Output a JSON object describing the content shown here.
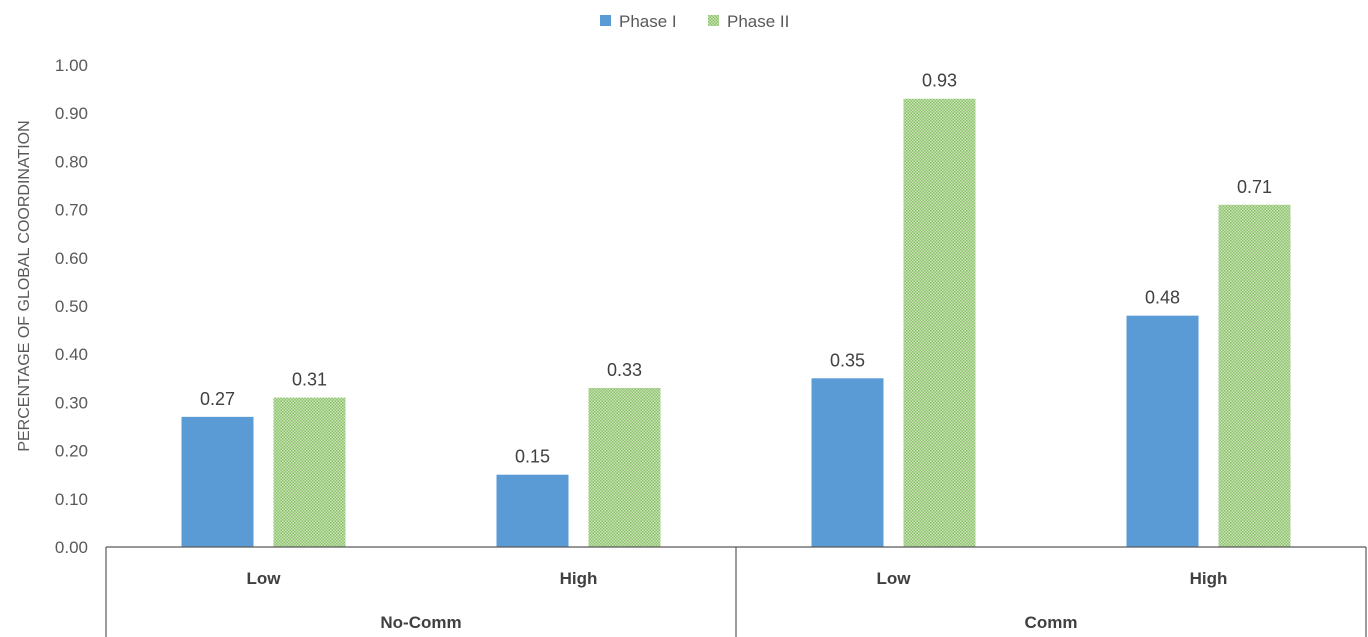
{
  "chart_data": {
    "type": "bar",
    "title": "",
    "ylabel": "PERCENTAGE OF GLOBAL COORDINATION",
    "ylim": [
      0,
      1
    ],
    "ytick_step": 0.1,
    "ytick_labels": [
      "0.00",
      "0.10",
      "0.20",
      "0.30",
      "0.40",
      "0.50",
      "0.60",
      "0.70",
      "0.80",
      "0.90",
      "1.00"
    ],
    "legend_position": "top-center",
    "groups": [
      {
        "label": "No-Comm",
        "categories": [
          "Low",
          "High"
        ]
      },
      {
        "label": "Comm",
        "categories": [
          "Low",
          "High"
        ]
      }
    ],
    "series": [
      {
        "name": "Phase I",
        "color": "#5b9bd5",
        "pattern": "solid",
        "values": [
          0.27,
          0.15,
          0.35,
          0.48
        ],
        "labels": [
          "0.27",
          "0.15",
          "0.35",
          "0.48"
        ]
      },
      {
        "name": "Phase II",
        "color": "#a9d18e",
        "pattern": "dotted",
        "values": [
          0.31,
          0.33,
          0.93,
          0.71
        ],
        "labels": [
          "0.31",
          "0.33",
          "0.93",
          "0.71"
        ]
      }
    ]
  }
}
